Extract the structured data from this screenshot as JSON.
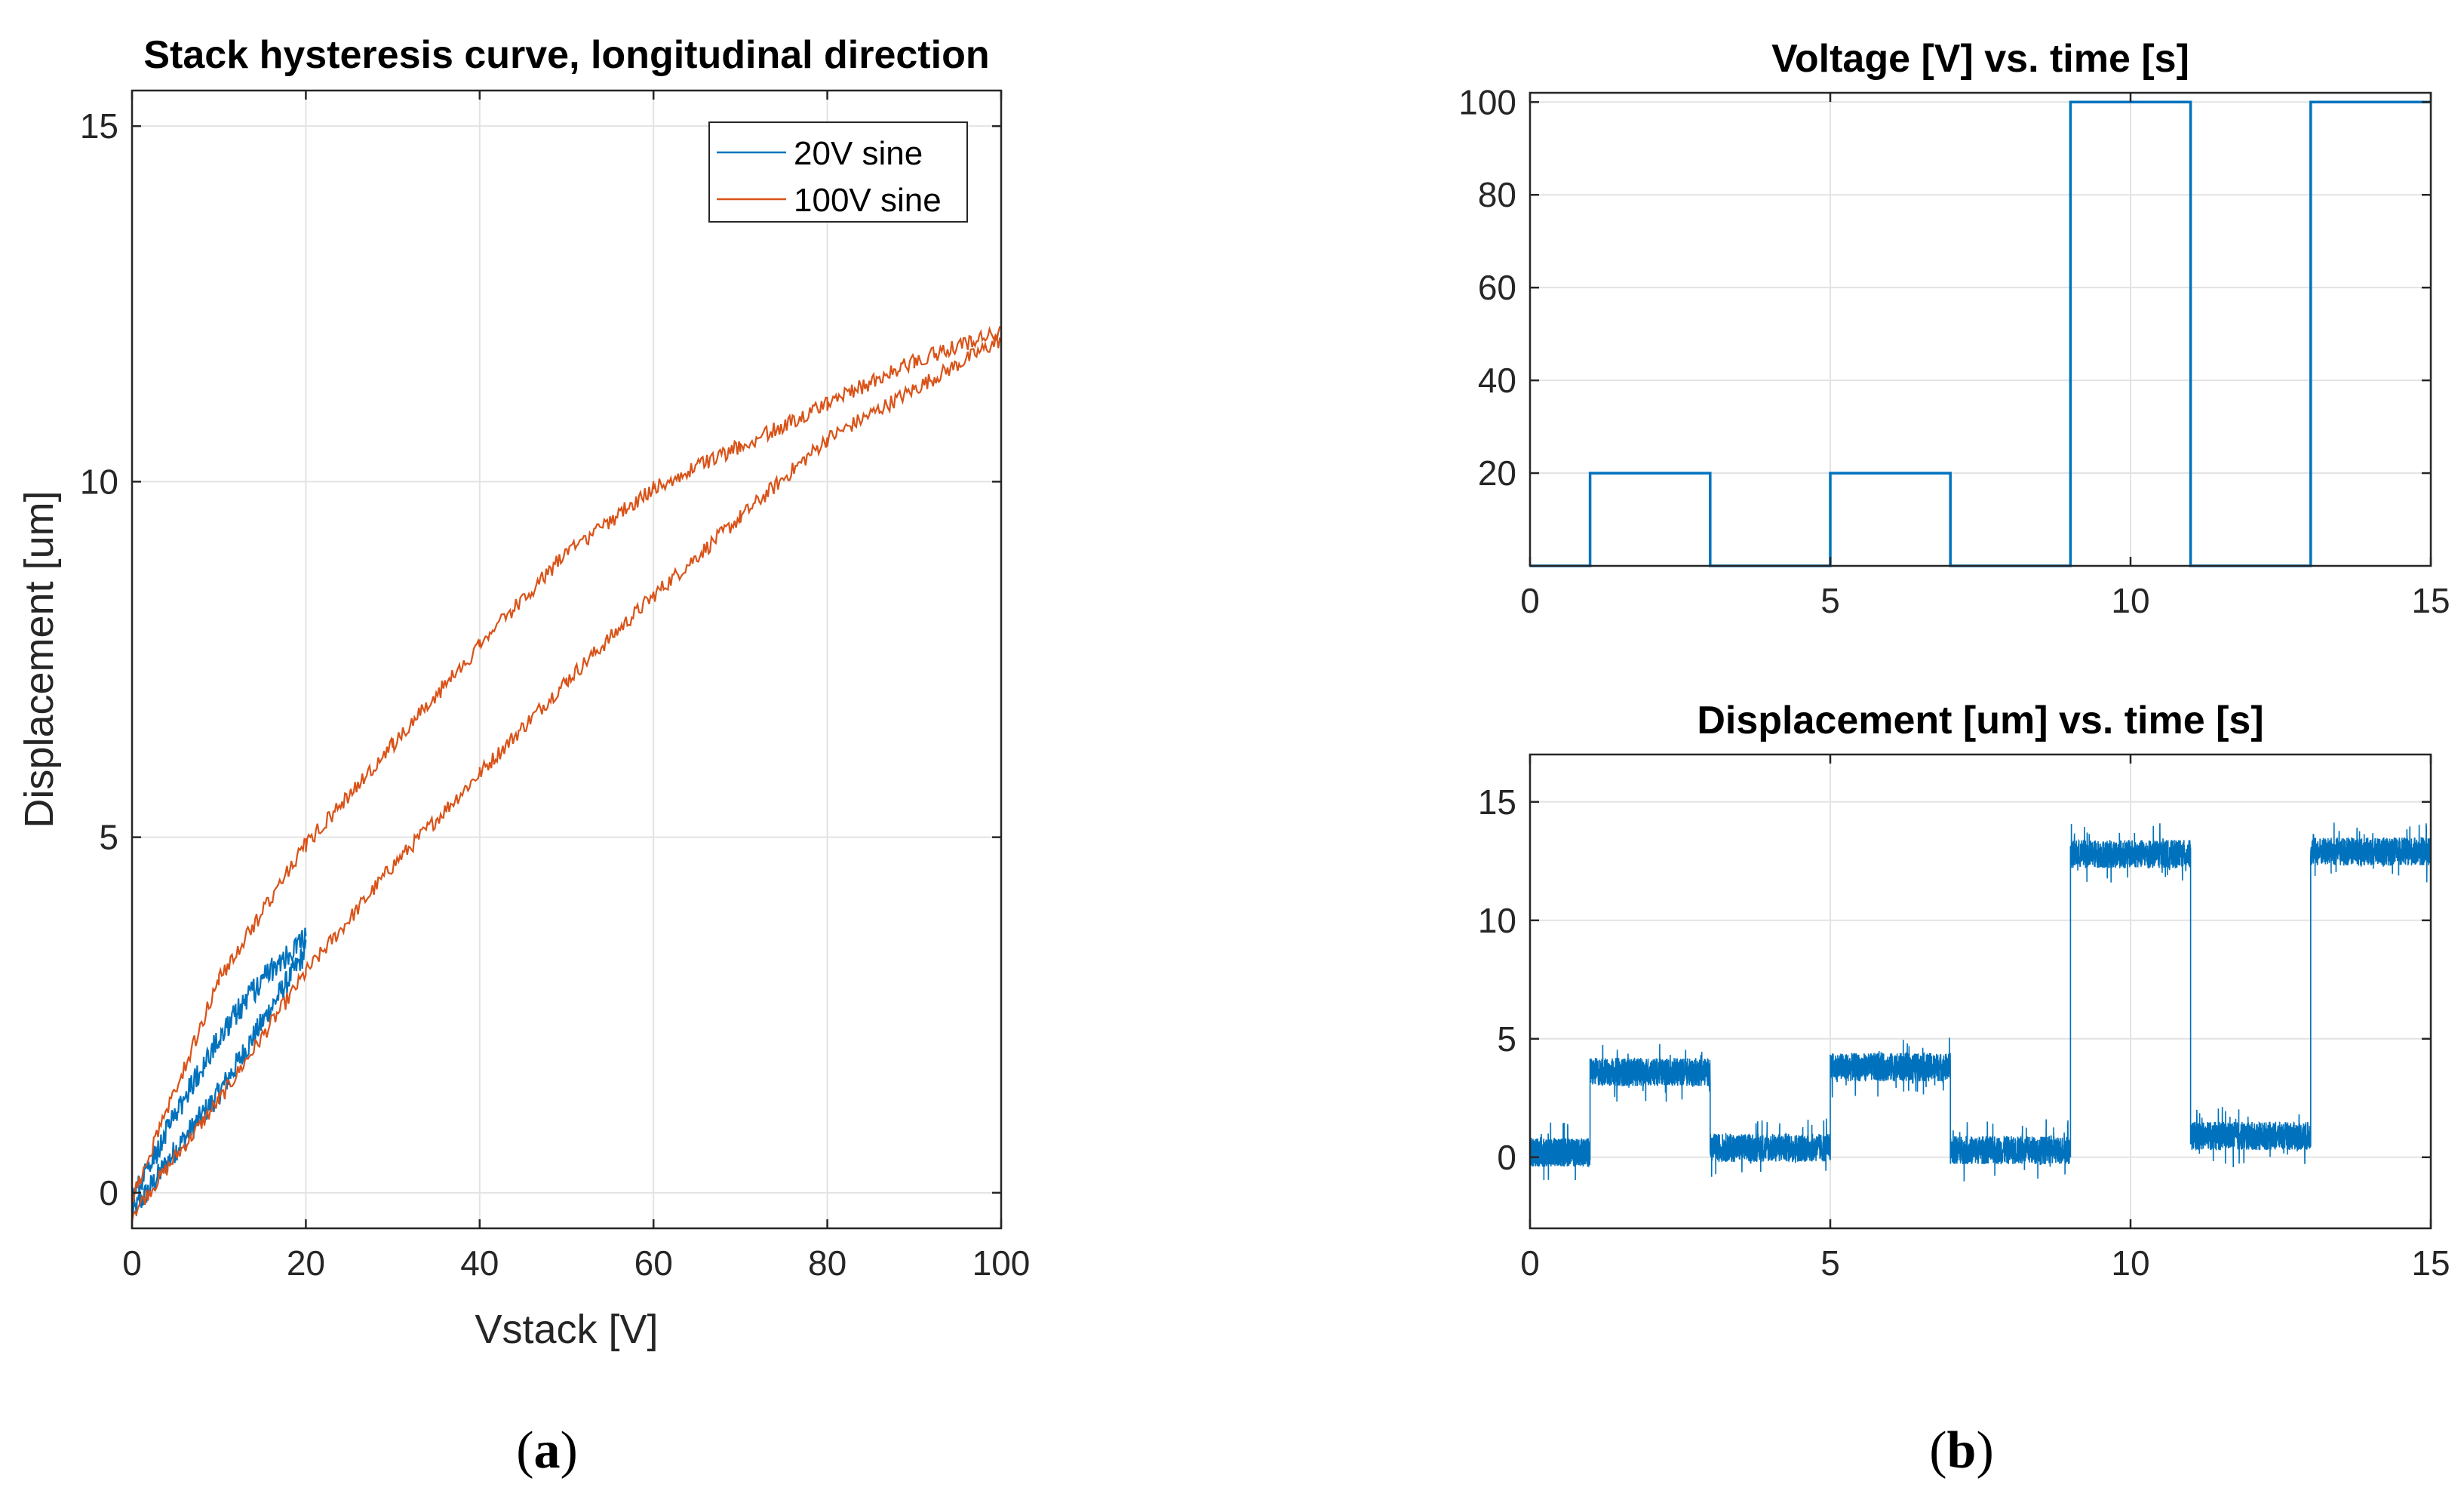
{
  "chart_data": [
    {
      "type": "line",
      "title": "Stack hysteresis curve, longitudinal direction",
      "xlabel": "Vstack [V]",
      "ylabel": "Displacement [um]",
      "xlim": [
        0,
        100
      ],
      "ylim": [
        -0.5,
        15.5
      ],
      "xticks": [
        "0",
        "20",
        "40",
        "60",
        "80",
        "100"
      ],
      "yticks": [
        "0",
        "5",
        "10",
        "15"
      ],
      "grid": true,
      "legend_position": "top-right",
      "series": [
        {
          "name": "20V sine",
          "color": "#0072BD",
          "rising": [
            [
              0,
              -0.3
            ],
            [
              5,
              0.6
            ],
            [
              10,
              1.4
            ],
            [
              15,
              2.4
            ],
            [
              20,
              3.4
            ]
          ],
          "falling": [
            [
              20,
              3.6
            ],
            [
              15,
              3.0
            ],
            [
              10,
              2.2
            ],
            [
              5,
              1.1
            ],
            [
              0,
              -0.1
            ]
          ]
        },
        {
          "name": "100V sine",
          "color": "#D95319",
          "rising": [
            [
              0,
              -0.3
            ],
            [
              10,
              1.3
            ],
            [
              20,
              3.1
            ],
            [
              30,
              4.6
            ],
            [
              40,
              5.9
            ],
            [
              50,
              7.2
            ],
            [
              60,
              8.4
            ],
            [
              70,
              9.5
            ],
            [
              80,
              10.6
            ],
            [
              90,
              11.3
            ],
            [
              100,
              12.0
            ]
          ],
          "falling": [
            [
              100,
              12.1
            ],
            [
              90,
              11.7
            ],
            [
              80,
              11.1
            ],
            [
              70,
              10.5
            ],
            [
              60,
              9.9
            ],
            [
              50,
              9.0
            ],
            [
              40,
              7.7
            ],
            [
              30,
              6.3
            ],
            [
              20,
              4.9
            ],
            [
              10,
              3.0
            ],
            [
              0,
              -0.1
            ]
          ]
        }
      ]
    },
    {
      "type": "line",
      "title": "Voltage [V] vs. time [s]",
      "xlim": [
        0,
        15
      ],
      "ylim": [
        0,
        102
      ],
      "xticks": [
        "0",
        "5",
        "10",
        "15"
      ],
      "yticks": [
        "20",
        "40",
        "60",
        "80",
        "100"
      ],
      "grid": true,
      "series": [
        {
          "name": "Voltage",
          "color": "#0072BD",
          "x": [
            0,
            1,
            1,
            3,
            3,
            5,
            5,
            7,
            7,
            9,
            9,
            11,
            11,
            13,
            13,
            15
          ],
          "y": [
            0,
            0,
            20,
            20,
            0,
            0,
            20,
            20,
            0,
            0,
            100,
            100,
            0,
            0,
            100,
            100
          ]
        }
      ]
    },
    {
      "type": "line",
      "title": "Displacement [um] vs. time [s]",
      "xlim": [
        0,
        15
      ],
      "ylim": [
        -3,
        17
      ],
      "xticks": [
        "0",
        "5",
        "10",
        "15"
      ],
      "yticks": [
        "0",
        "5",
        "10",
        "15"
      ],
      "grid": true,
      "series": [
        {
          "name": "Displacement",
          "color": "#0072BD",
          "segments": [
            {
              "x0": 0,
              "x1": 1,
              "level": 0.2
            },
            {
              "x0": 1,
              "x1": 3,
              "level": 3.6
            },
            {
              "x0": 3,
              "x1": 5,
              "level": 0.4
            },
            {
              "x0": 5,
              "x1": 7,
              "level": 3.8
            },
            {
              "x0": 7,
              "x1": 9,
              "level": 0.3
            },
            {
              "x0": 9,
              "x1": 11,
              "level": 12.8
            },
            {
              "x0": 11,
              "x1": 13,
              "level": 0.9
            },
            {
              "x0": 13,
              "x1": 15,
              "level": 12.9
            }
          ],
          "noise_amplitude": 0.6
        }
      ]
    }
  ],
  "labels": {
    "panel_a": "a",
    "panel_b": "b"
  }
}
